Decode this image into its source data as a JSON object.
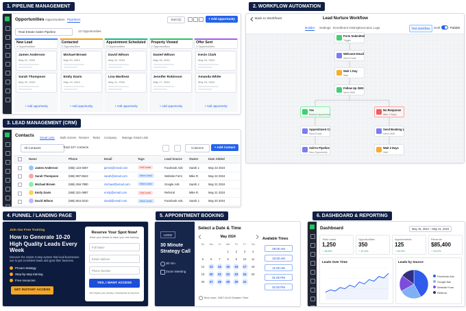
{
  "sections": [
    "1. PIPELINE MANAGEMENT",
    "2. WORKFLOW AUTOMATION",
    "3. LEAD MANAGEMENT (CRM)",
    "4. FUNNEL / LANDING PAGE",
    "5. APPOINTMENT BOOKING",
    "6. DASHBOARD & REPORTING"
  ],
  "pipeline": {
    "title": "Opportunities",
    "tabs": [
      "Opportunities",
      "Pipelines"
    ],
    "filter": "Real Estate Sales Pipeline",
    "count": "13 Opportunities",
    "sort": "Sort (1)",
    "add": "+ Add opportunity",
    "stages": [
      {
        "name": "New Lead",
        "count": "3 Opportunities",
        "color": "#3b82f6",
        "cards": [
          {
            "name": "James Anderson",
            "date": "May 21, 2024"
          },
          {
            "name": "Sarah Thompson",
            "date": "May 20, 2024"
          }
        ]
      },
      {
        "name": "Contacted",
        "count": "2 Opportunities",
        "color": "#f59e0b",
        "cards": [
          {
            "name": "Michael Brown",
            "date": "May 20, 2024"
          },
          {
            "name": "Emily Davis",
            "date": "May 19, 2024"
          }
        ]
      },
      {
        "name": "Appointment Scheduled",
        "count": "3 Opportunities",
        "color": "#10b981",
        "cards": [
          {
            "name": "David Wilson",
            "date": "May 22, 2024"
          },
          {
            "name": "Lisa Martinez",
            "date": "May 21, 2024"
          }
        ]
      },
      {
        "name": "Property Viewed",
        "count": "2 Opportunities",
        "color": "#22c55e",
        "cards": [
          {
            "name": "Daniel Wilson",
            "date": "May 18, 2024"
          },
          {
            "name": "Jennifer Robinson",
            "date": "May 17, 2024"
          }
        ]
      },
      {
        "name": "Offer Sent",
        "count": "3 Opportunities",
        "color": "#a855f7",
        "cards": [
          {
            "name": "Kevin Clark",
            "date": "May 16, 2024"
          },
          {
            "name": "Amanda White",
            "date": "May 15, 2024"
          }
        ]
      }
    ],
    "add_link": "+ Add opportunity"
  },
  "workflow": {
    "back": "Back to Workflows",
    "title": "Lead Nurture Workflow",
    "tabs": [
      "Builder",
      "Settings",
      "Enrollment History",
      "Execution Logs"
    ],
    "test": "Test Workflow",
    "draft": "Draft",
    "publish": "Publish",
    "nodes": [
      {
        "title": "Form Submitted",
        "sub": "Trigger"
      },
      {
        "title": "Welcome Email",
        "sub": "Send Email"
      },
      {
        "title": "Wait 1 Day",
        "sub": "Wait"
      },
      {
        "title": "Follow Up SMS",
        "sub": "Send SMS"
      },
      {
        "title": "Yes",
        "sub": "Booked Appointment"
      },
      {
        "title": "No Response",
        "sub": "After 3 Days"
      },
      {
        "title": "Appointment Confirmation",
        "sub": "Send Email"
      },
      {
        "title": "Send Booking Link",
        "sub": "Send SMS"
      },
      {
        "title": "Add to Pipeline",
        "sub": "New Opportunity"
      },
      {
        "title": "Wait 2 Days",
        "sub": "Wait"
      }
    ]
  },
  "crm": {
    "title": "Contacts",
    "tabs": [
      "Smart Lists",
      "Bulk Actions",
      "Restore",
      "Tasks",
      "Company",
      "Manage Smart Lists"
    ],
    "filter": "All Contacts",
    "total": "Total 347 contacts",
    "columns_btn": "Columns",
    "add": "+ Add Contact",
    "columns": [
      "Name",
      "Phone",
      "Email",
      "Tags",
      "Lead Source",
      "Owner",
      "Date Added"
    ],
    "rows": [
      [
        "James Anderson",
        "(555) 123-4567",
        "james@email.com",
        "Hot Lead",
        "Facebook Ads",
        "Sarah J.",
        "May 22 2024"
      ],
      [
        "Sarah Thompson",
        "(555) 987-6543",
        "sarah@email.com",
        "New Lead",
        "Website Form",
        "Mike R.",
        "May 22 2024"
      ],
      [
        "Michael Brown",
        "(555) 456-7890",
        "michael@email.com",
        "New Lead",
        "Google Ads",
        "Sarah J.",
        "May 21 2024"
      ],
      [
        "Emily Davis",
        "(555) 321-0987",
        "emily@email.com",
        "Hot Lead",
        "Referral",
        "Mike R.",
        "May 21 2024"
      ],
      [
        "David Wilson",
        "(555) 654-3210",
        "david@email.com",
        "New Lead",
        "Facebook Ads",
        "Sarah J.",
        "May 20 2024"
      ]
    ]
  },
  "funnel": {
    "kicker": "Join Our Free Training",
    "headline": "How to Generate 10-20 High Quality Leads Every Week",
    "desc": "Discover the simple 3-step system that local businesses use to get consistent leads and grow their business.",
    "bullets": [
      "Proven strategy",
      "Step-by-step training",
      "Free resources"
    ],
    "cta": "GET INSTANT ACCESS",
    "form_title": "Reserve Your Spot Now!",
    "form_sub": "Enter your details to claim your free training.",
    "fields": [
      "Full Name",
      "Email Address",
      "Phone Number"
    ],
    "submit": "YES, I WANT ACCESS",
    "privacy": "We respect your privacy. Unsubscribe at any time."
  },
  "booking": {
    "title": "Select a Date & Time",
    "logo": "LOGO",
    "event": "30 Minute Strategy Call",
    "duration": "30 min",
    "location": "Zoom Meeting",
    "month": "May 2024",
    "weekdays": [
      "Su",
      "Mo",
      "Tu",
      "We",
      "Th",
      "Fr",
      "Sa"
    ],
    "days": [
      1,
      2,
      3,
      4,
      5,
      6,
      7,
      8,
      9,
      10,
      11,
      12,
      13,
      14,
      15,
      16,
      17,
      18,
      19,
      20,
      21,
      22,
      23,
      24,
      25,
      26,
      27,
      28,
      29,
      30,
      31
    ],
    "times_title": "Available Times",
    "times": [
      "09:00 AM",
      "10:00 AM",
      "11:00 AM",
      "01:00 PM",
      "02:00 PM"
    ],
    "timezone": "Time zone: GMT-04:00 Eastern Time"
  },
  "dashboard": {
    "title": "Dashboard",
    "range": "May 15, 2024 – May 21, 2024",
    "kpis": [
      {
        "label": "Total Leads",
        "value": "1,250",
        "change": "↑ 18.5%"
      },
      {
        "label": "Opportunities",
        "value": "350",
        "change": "↑ 12.4%"
      },
      {
        "label": "Appointments",
        "value": "125",
        "change": "↑ 15.3%"
      },
      {
        "label": "Revenue",
        "value": "$85,400",
        "change": "↑ 15.2%"
      }
    ],
    "line": {
      "type": "line",
      "title": "Leads Over Time",
      "values": [
        18,
        24,
        21,
        30,
        27,
        36,
        31,
        44,
        39,
        50,
        46,
        58,
        54,
        66
      ],
      "ylim": [
        0,
        80
      ],
      "color": "#2563eb"
    },
    "pie": {
      "type": "pie",
      "title": "Leads by Source",
      "categories": [
        "Facebook Ads",
        "Google Ads",
        "Website Form",
        "Referral"
      ],
      "values": [
        42,
        25,
        18,
        15
      ],
      "colors": [
        "#2f5bea",
        "#7fb0f5",
        "#7c4ddb",
        "#312e81"
      ]
    }
  }
}
